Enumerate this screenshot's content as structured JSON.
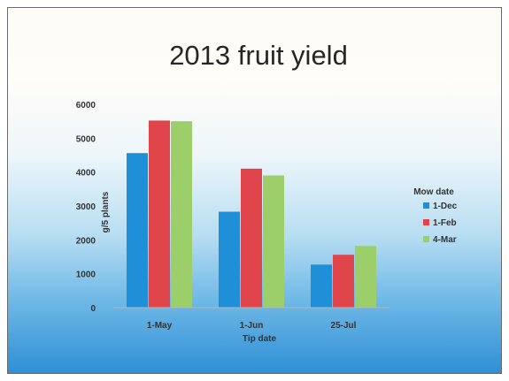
{
  "chart_data": {
    "type": "bar",
    "title": "2013 fruit yield",
    "xlabel": "Tip date",
    "ylabel": "g/5 plants",
    "categories": [
      "1-May",
      "1-Jun",
      "25-Jul"
    ],
    "ylim": [
      0,
      6000
    ],
    "yticks": [
      0,
      1000,
      2000,
      3000,
      4000,
      5000,
      6000
    ],
    "grid": false,
    "legend_title": "Mow date",
    "legend_position": "right",
    "series": [
      {
        "name": "1-Dec",
        "color": "#1f8fd8",
        "values": [
          4560,
          2830,
          1270
        ]
      },
      {
        "name": "1-Feb",
        "color": "#e0454c",
        "values": [
          5520,
          4100,
          1560
        ]
      },
      {
        "name": "4-Mar",
        "color": "#9ccf6a",
        "values": [
          5500,
          3900,
          1820
        ]
      }
    ]
  }
}
